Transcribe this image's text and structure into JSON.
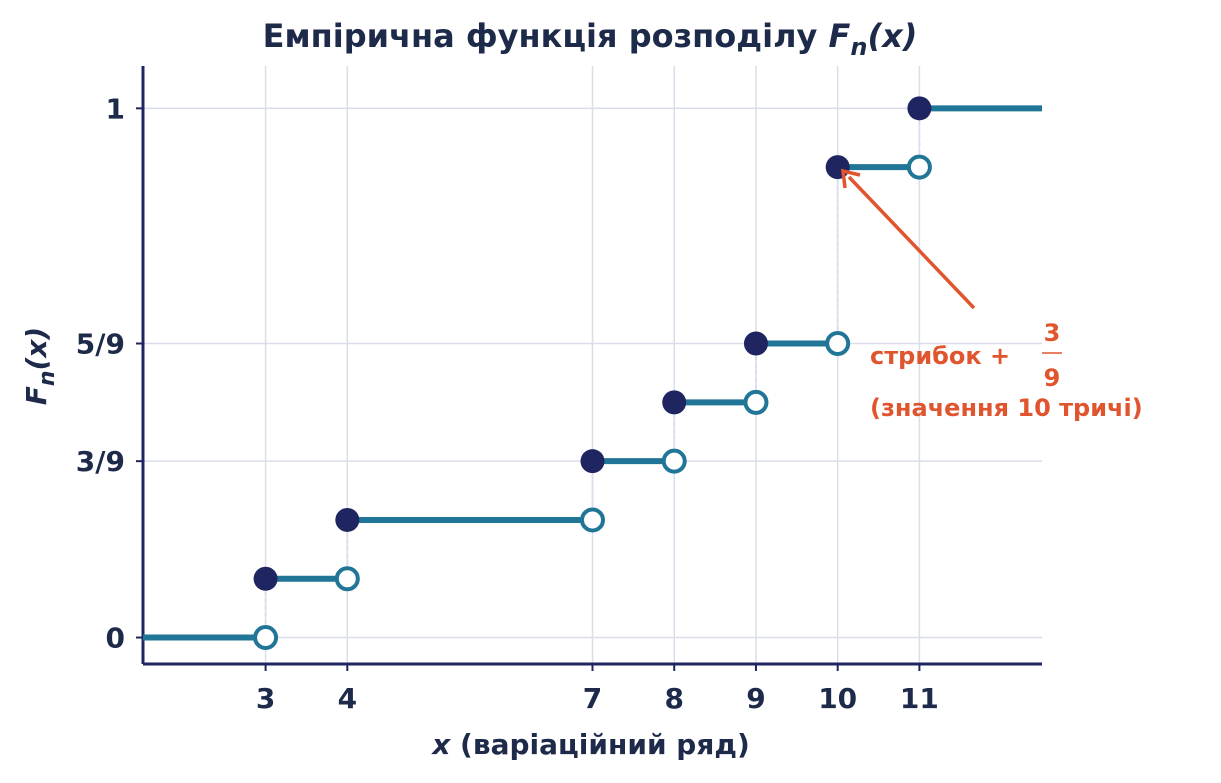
{
  "chart_data": {
    "type": "line",
    "subtype": "step-ecdf",
    "title": {
      "prefix": "Емпірична функція розподілу ",
      "fn_symbol": "F",
      "fn_sub": "n",
      "fn_arg": "(x)"
    },
    "xlabel": {
      "var": "x",
      "rest": " (варіаційний ряд)"
    },
    "ylabel": {
      "fn_symbol": "F",
      "fn_sub": "n",
      "fn_arg": "(x)"
    },
    "xlim": [
      1.5,
      12.5
    ],
    "ylim": [
      -0.05,
      1.08
    ],
    "x_ticks": [
      3,
      4,
      7,
      8,
      9,
      10,
      11
    ],
    "x_tick_labels": [
      "3",
      "4",
      "7",
      "8",
      "9",
      "10",
      "11"
    ],
    "y_ticks": [
      0,
      0.3333,
      0.5556,
      1
    ],
    "y_tick_labels": [
      "0",
      "3/9",
      "5/9",
      "1"
    ],
    "grid": true,
    "steps": [
      {
        "x_start": 1.5,
        "x_end": 3,
        "y": 0
      },
      {
        "x_start": 3,
        "x_end": 4,
        "y": 0.1111
      },
      {
        "x_start": 4,
        "x_end": 7,
        "y": 0.2222
      },
      {
        "x_start": 7,
        "x_end": 8,
        "y": 0.3333
      },
      {
        "x_start": 8,
        "x_end": 9,
        "y": 0.4444
      },
      {
        "x_start": 9,
        "x_end": 10,
        "y": 0.5556
      },
      {
        "x_start": 10,
        "x_end": 11,
        "y": 0.8889
      },
      {
        "x_start": 11,
        "x_end": 12.5,
        "y": 1
      }
    ],
    "annotation": {
      "text_prefix": "стрибок +",
      "frac_num": "3",
      "frac_den": "9",
      "line2": "(значення 10 тричі)",
      "target": {
        "x": 10,
        "y": 0.8889
      }
    }
  },
  "colors": {
    "step_line": "#217597",
    "filled_point": "#1f2560",
    "open_point_stroke": "#217597",
    "axis": "#1f2560",
    "grid": "#d9deea",
    "text": "#1e2a4a",
    "annotation": "#e0552e"
  }
}
